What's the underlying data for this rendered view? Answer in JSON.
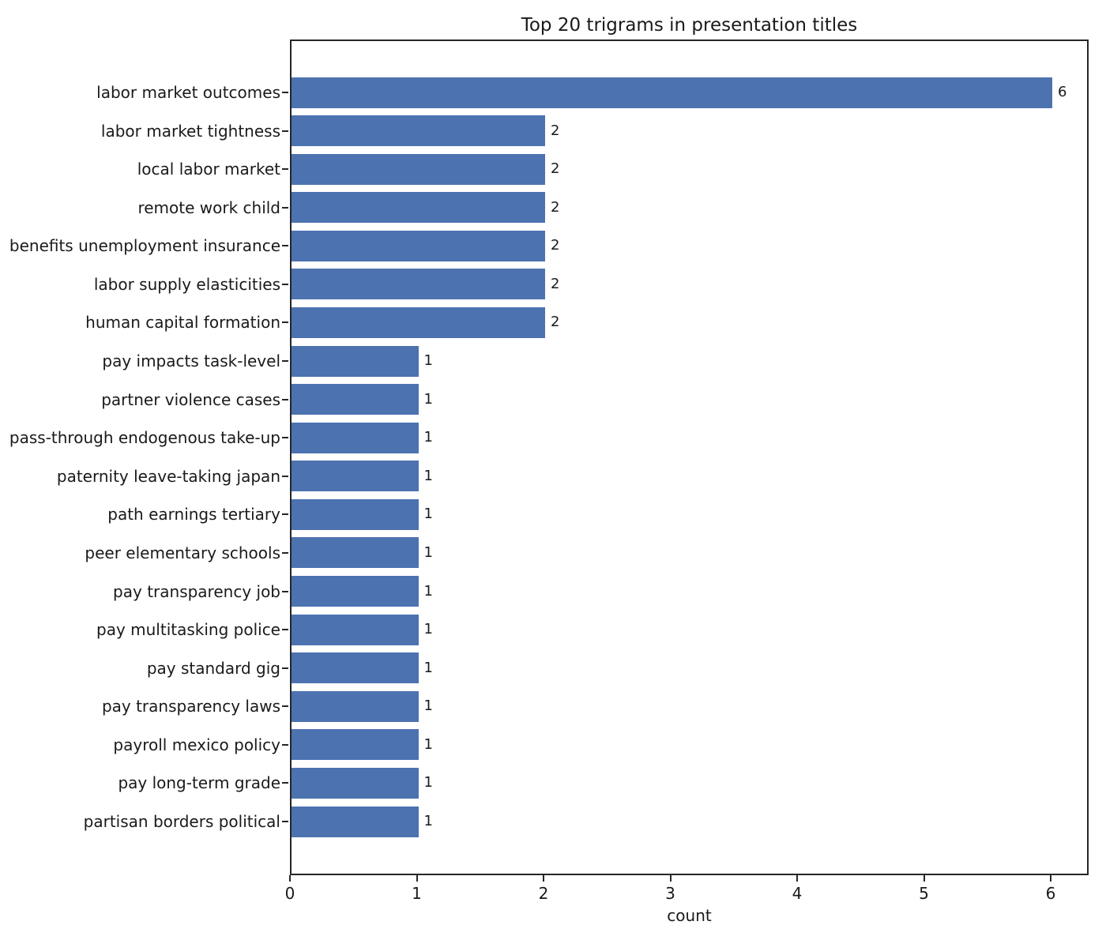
{
  "chart_data": {
    "type": "bar",
    "orientation": "horizontal",
    "title": "Top 20 trigrams in presentation titles",
    "xlabel": "count",
    "ylabel": "",
    "categories": [
      "labor market outcomes",
      "labor market tightness",
      "local labor market",
      "remote work child",
      "benefits unemployment insurance",
      "labor supply elasticities",
      "human capital formation",
      "pay impacts task-level",
      "partner violence cases",
      "pass-through endogenous take-up",
      "paternity leave-taking japan",
      "path earnings tertiary",
      "peer elementary schools",
      "pay transparency job",
      "pay multitasking police",
      "pay standard gig",
      "pay transparency laws",
      "payroll mexico policy",
      "pay long-term grade",
      "partisan borders political"
    ],
    "values": [
      6,
      2,
      2,
      2,
      2,
      2,
      2,
      1,
      1,
      1,
      1,
      1,
      1,
      1,
      1,
      1,
      1,
      1,
      1,
      1
    ],
    "bar_value_labels": [
      "6",
      "2",
      "2",
      "2",
      "2",
      "2",
      "2",
      "1",
      "1",
      "1",
      "1",
      "1",
      "1",
      "1",
      "1",
      "1",
      "1",
      "1",
      "1",
      "1"
    ],
    "x_ticks": [
      "0",
      "1",
      "2",
      "3",
      "4",
      "5",
      "6"
    ],
    "x_tick_values": [
      0,
      1,
      2,
      3,
      4,
      5,
      6
    ],
    "xlim": [
      0,
      6.3
    ],
    "bar_color": "#4C72B0",
    "grid": false
  }
}
